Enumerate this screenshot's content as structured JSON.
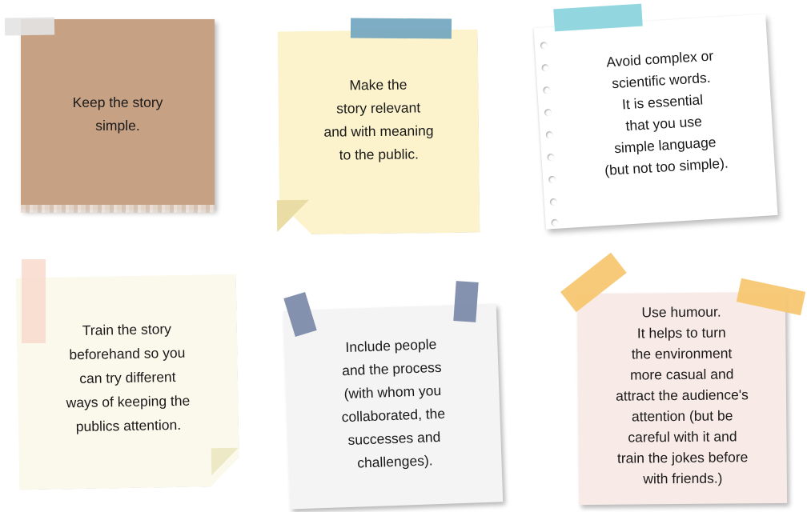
{
  "notes": [
    {
      "lines": [
        "Keep the story",
        "simple."
      ],
      "color": "#c7a184",
      "tape_color": "#e3e3e3"
    },
    {
      "lines": [
        "Make the",
        "story relevant",
        "and with meaning",
        "to the public."
      ],
      "color": "#fcf2cb",
      "tape_color": "#6fa4bf"
    },
    {
      "lines": [
        "Avoid complex or",
        "scientific words.",
        "It is essential",
        "that you use",
        "simple language",
        "(but not too simple)."
      ],
      "color": "#ffffff",
      "tape_color": "#86d3dc"
    },
    {
      "lines": [
        "Train the story",
        "beforehand so you",
        "can try different",
        "ways of keeping the",
        "publics attention."
      ],
      "color": "#fbf9ec",
      "tape_color": "#f8dccf"
    },
    {
      "lines": [
        "Include people",
        "and the process",
        "(with whom you",
        "collaborated, the",
        "successes and",
        "challenges)."
      ],
      "color": "#f4f4f4",
      "tape_color": "#7786a6"
    },
    {
      "lines": [
        "Use humour.",
        "It helps to turn",
        "the environment",
        "more casual and",
        "attract the audience's",
        "attention (but be",
        "careful with it and",
        "train the jokes before",
        "with friends.)"
      ],
      "color": "#f8ebe7",
      "tape_color": "#f6c66e"
    }
  ]
}
